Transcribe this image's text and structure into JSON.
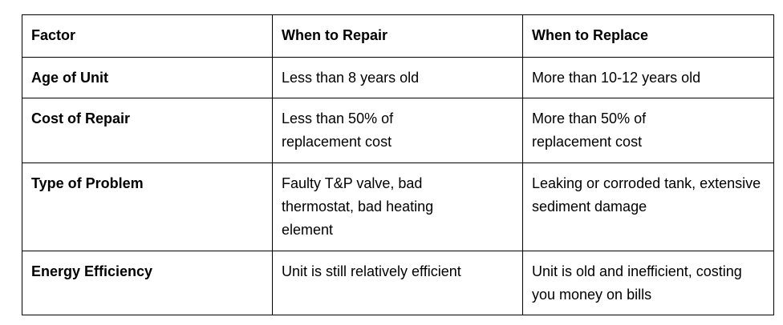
{
  "headers": [
    "Factor",
    "When to Repair",
    "When to Replace"
  ],
  "rows": [
    {
      "factor": "Age of Unit",
      "repair": "Less than 8 years old",
      "replace": "More than 10-12 years old"
    },
    {
      "factor": "Cost of Repair",
      "repair": "Less than 50% of replacement cost",
      "replace": "More than 50% of replacement cost"
    },
    {
      "factor": "Type of Problem",
      "repair": "Faulty T&P valve, bad thermostat, bad heating element",
      "replace": "Leaking or corroded tank, extensive sediment damage"
    },
    {
      "factor": "Energy Efficiency",
      "repair": "Unit is still relatively efficient",
      "replace": "Unit is old and inefficient, costing you money on bills"
    }
  ]
}
